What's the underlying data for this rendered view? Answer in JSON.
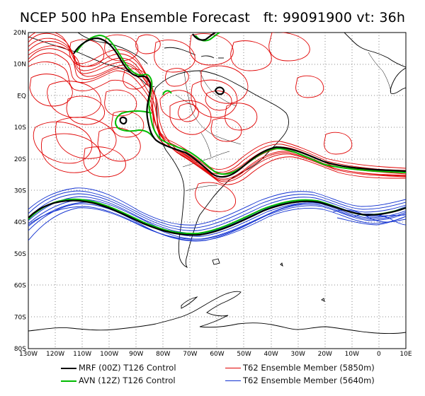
{
  "title": "NCEP 500 hPa Ensemble Forecast   ft: 99091900 vt: 36h",
  "map": {
    "lat_labels": [
      "20N",
      "10N",
      "EQ",
      "10S",
      "20S",
      "30S",
      "40S",
      "50S",
      "60S",
      "70S",
      "80S"
    ],
    "lon_labels": [
      "130W",
      "120W",
      "110W",
      "100W",
      "90W",
      "80W",
      "70W",
      "60W",
      "50W",
      "40W",
      "30W",
      "20W",
      "10W",
      "0",
      "10E"
    ]
  },
  "legend": {
    "items": [
      {
        "label": "MRF (00Z) T126 Control",
        "color": "#000000"
      },
      {
        "label": "AVN (12Z) T126 Control",
        "color": "#00bb00"
      },
      {
        "label": "T62 Ensemble Member (5850m)",
        "color": "#e00000"
      },
      {
        "label": "T62 Ensemble Member (5640m)",
        "color": "#1030d0"
      }
    ]
  },
  "colors": {
    "ens_5850": "#e00000",
    "ens_5640": "#1030d0",
    "mrf": "#000000",
    "avn": "#00bb00",
    "coast": "#000000",
    "grid": "#555555"
  }
}
